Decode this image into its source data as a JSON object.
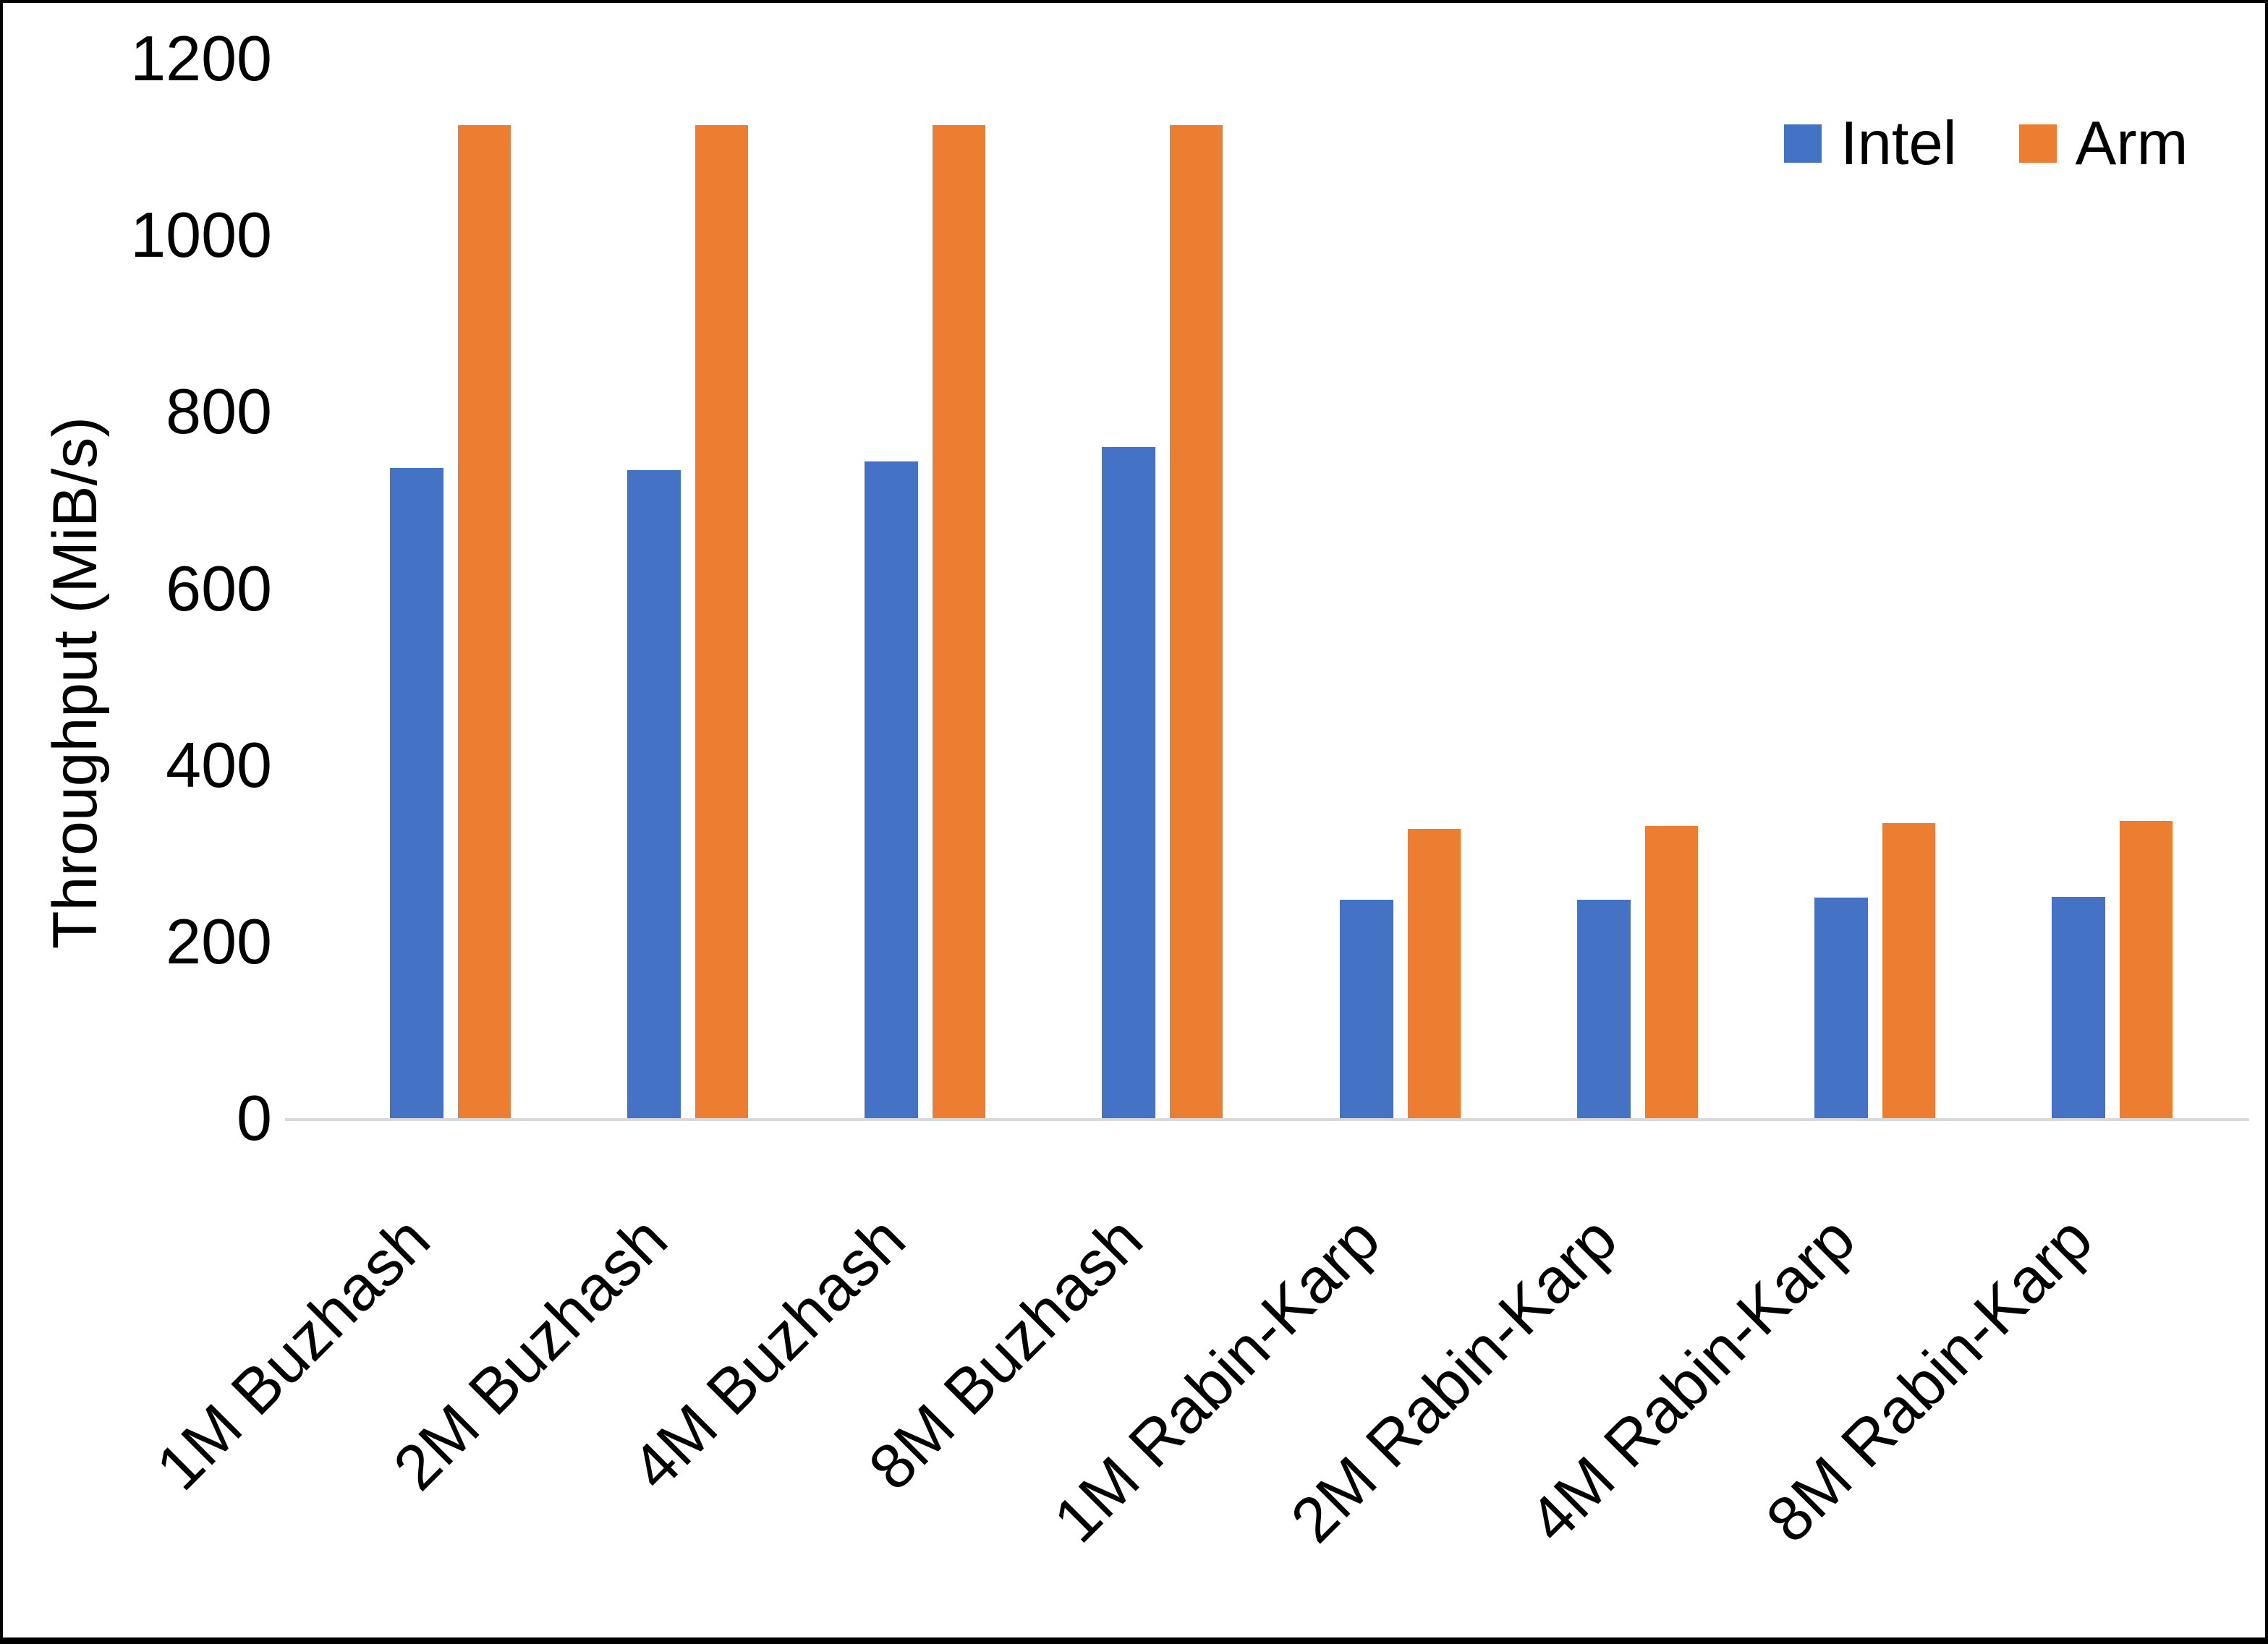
{
  "chart_data": {
    "type": "bar",
    "title": "",
    "xlabel": "",
    "ylabel": "Throughput (MiB/s)",
    "ylim": [
      0,
      1200
    ],
    "yticks": [
      0,
      200,
      400,
      600,
      800,
      1000,
      1200
    ],
    "grid": false,
    "legend_position": "top-right",
    "categories": [
      "1M Buzhash",
      "2M Buzhash",
      "4M Buzhash",
      "8M Buzhash",
      "1M Rabin-Karp",
      "2M Rabin-Karp",
      "4M Rabin-Karp",
      "8M Rabin-Karp"
    ],
    "series": [
      {
        "name": "Intel",
        "color": "#4472C4",
        "values": [
          736,
          734,
          744,
          760,
          247,
          247,
          250,
          251
        ]
      },
      {
        "name": "Arm",
        "color": "#ED7D31",
        "values": [
          1125,
          1125,
          1125,
          1125,
          328,
          331,
          334,
          337
        ]
      }
    ],
    "axis_line_color": "#D9D9D9",
    "frame_border_color": "#000000"
  }
}
